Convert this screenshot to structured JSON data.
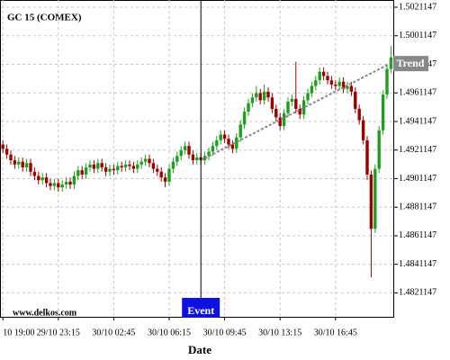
{
  "chart_data": {
    "type": "candlestick",
    "title": "GC 15 (COMEX)",
    "watermark": "www.delkos.com",
    "x_label": "Date",
    "categories": [
      "10 19:00",
      null,
      null,
      null,
      null,
      null,
      null,
      null,
      null,
      null,
      null,
      null,
      null,
      null,
      "29/10 23:15",
      null,
      null,
      null,
      null,
      null,
      null,
      null,
      null,
      null,
      null,
      null,
      null,
      null,
      "30/10 02:45",
      null,
      null,
      null,
      null,
      null,
      null,
      null,
      null,
      null,
      null,
      null,
      null,
      null,
      "30/10 06:15",
      null,
      null,
      null,
      null,
      null,
      null,
      null,
      null,
      null,
      null,
      null,
      null,
      null,
      "30/10 09:45",
      null,
      null,
      null,
      null,
      null,
      null,
      null,
      null,
      null,
      null,
      null,
      null,
      null,
      "30/10 13:15",
      null,
      null,
      null,
      null,
      null,
      null,
      null,
      null,
      null,
      null,
      null,
      null,
      null,
      "30/10 16:45",
      null,
      null,
      null,
      null,
      null,
      null,
      null,
      null,
      null,
      null,
      null,
      null,
      null,
      null
    ],
    "open": [
      1.4925,
      1.4922,
      1.4918,
      1.4914,
      1.4911,
      1.4913,
      1.4909,
      1.4912,
      1.4906,
      1.4903,
      1.49,
      1.4902,
      1.4898,
      1.4896,
      1.4898,
      1.4895,
      1.4897,
      1.4899,
      1.4897,
      1.4903,
      1.4907,
      1.4904,
      1.4909,
      1.4911,
      1.4908,
      1.4912,
      1.4909,
      1.4906,
      1.4908,
      1.4907,
      1.491,
      1.4909,
      1.4911,
      1.491,
      1.4908,
      1.4911,
      1.4913,
      1.4915,
      1.4912,
      1.4908,
      1.4906,
      1.4902,
      1.4899,
      1.4908,
      1.4913,
      1.4917,
      1.4921,
      1.4924,
      1.4918,
      1.4914,
      1.4916,
      1.4914,
      1.4917,
      1.492,
      1.4924,
      1.4928,
      1.4932,
      1.4929,
      1.4925,
      1.4922,
      1.493,
      1.4939,
      1.4948,
      1.4954,
      1.4958,
      1.4961,
      1.4956,
      1.4962,
      1.4958,
      1.495,
      1.4944,
      1.4938,
      1.4947,
      1.4955,
      1.4957,
      1.495,
      1.4946,
      1.4956,
      1.4961,
      1.4966,
      1.497,
      1.4976,
      1.4973,
      1.497,
      1.4967,
      1.4966,
      1.4969,
      1.4964,
      1.4966,
      1.4962,
      1.495,
      1.4942,
      1.4928,
      1.4904,
      1.4866,
      1.4908,
      1.4935,
      1.496,
      1.4978
    ],
    "high": [
      1.4928,
      1.4925,
      1.4921,
      1.4917,
      1.4916,
      1.4916,
      1.4915,
      1.4915,
      1.4909,
      1.4906,
      1.4905,
      1.4905,
      1.4901,
      1.4901,
      1.4901,
      1.49,
      1.4902,
      1.4902,
      1.4906,
      1.491,
      1.491,
      1.4912,
      1.4914,
      1.4914,
      1.4915,
      1.4915,
      1.4912,
      1.4911,
      1.4911,
      1.4913,
      1.4913,
      1.4914,
      1.4914,
      1.4913,
      1.4914,
      1.4916,
      1.4918,
      1.4918,
      1.4915,
      1.4911,
      1.4909,
      1.4905,
      1.4911,
      1.4916,
      1.492,
      1.4924,
      1.4927,
      1.4927,
      1.4921,
      1.4919,
      1.4919,
      1.492,
      1.4923,
      1.4927,
      1.4931,
      1.4935,
      1.4935,
      1.4932,
      1.4928,
      1.4933,
      1.4942,
      1.4951,
      1.4957,
      1.4961,
      1.4966,
      1.4964,
      1.4967,
      1.4965,
      1.4961,
      1.4953,
      1.4947,
      1.495,
      1.4958,
      1.496,
      1.4983,
      1.4953,
      1.4959,
      1.4964,
      1.4969,
      1.4973,
      1.4979,
      1.4979,
      1.4976,
      1.4973,
      1.497,
      1.4972,
      1.4972,
      1.4969,
      1.4969,
      1.4965,
      1.4953,
      1.4945,
      1.4931,
      1.4907,
      1.4911,
      1.4938,
      1.4963,
      1.4981,
      1.4994
    ],
    "low": [
      1.4919,
      1.4915,
      1.4911,
      1.4908,
      1.4908,
      1.4906,
      1.4906,
      1.4903,
      1.49,
      1.4897,
      1.4897,
      1.4895,
      1.4893,
      1.4893,
      1.4892,
      1.4892,
      1.4894,
      1.4894,
      1.4894,
      1.49,
      1.4901,
      1.4901,
      1.4906,
      1.4905,
      1.4905,
      1.4906,
      1.4903,
      1.4903,
      1.4904,
      1.4904,
      1.4906,
      1.4906,
      1.4907,
      1.4905,
      1.4905,
      1.4908,
      1.491,
      1.4909,
      1.4905,
      1.4903,
      1.4899,
      1.4895,
      1.4896,
      1.4905,
      1.491,
      1.4914,
      1.4918,
      1.4915,
      1.4911,
      1.4911,
      1.4911,
      1.4911,
      1.4914,
      1.4917,
      1.4921,
      1.4925,
      1.4926,
      1.4922,
      1.4919,
      1.4919,
      1.4927,
      1.4936,
      1.4945,
      1.4951,
      1.4955,
      1.4953,
      1.4953,
      1.4955,
      1.4947,
      1.4941,
      1.4935,
      1.4935,
      1.4944,
      1.4952,
      1.4947,
      1.4943,
      1.4943,
      1.4953,
      1.4958,
      1.4963,
      1.4967,
      1.497,
      1.4967,
      1.4964,
      1.4963,
      1.4963,
      1.4961,
      1.4961,
      1.4959,
      1.4947,
      1.4939,
      1.4925,
      1.49,
      1.4832,
      1.4863,
      1.4905,
      1.4932,
      1.4957,
      1.4975
    ],
    "close": [
      1.4922,
      1.4918,
      1.4914,
      1.4911,
      1.4913,
      1.4909,
      1.4912,
      1.4906,
      1.4903,
      1.49,
      1.4902,
      1.4898,
      1.4896,
      1.4898,
      1.4895,
      1.4897,
      1.4899,
      1.4897,
      1.4903,
      1.4907,
      1.4904,
      1.4909,
      1.4911,
      1.4908,
      1.4912,
      1.4909,
      1.4906,
      1.4908,
      1.4907,
      1.491,
      1.4909,
      1.4911,
      1.491,
      1.4908,
      1.4911,
      1.4913,
      1.4915,
      1.4912,
      1.4908,
      1.4906,
      1.4902,
      1.4899,
      1.4908,
      1.4913,
      1.4917,
      1.4921,
      1.4924,
      1.4918,
      1.4914,
      1.4916,
      1.4914,
      1.4917,
      1.492,
      1.4924,
      1.4928,
      1.4932,
      1.4929,
      1.4925,
      1.4922,
      1.493,
      1.4939,
      1.4948,
      1.4954,
      1.4958,
      1.4961,
      1.4956,
      1.4962,
      1.4958,
      1.495,
      1.4944,
      1.4938,
      1.4947,
      1.4955,
      1.4957,
      1.495,
      1.4946,
      1.4956,
      1.4961,
      1.4966,
      1.497,
      1.4976,
      1.4973,
      1.497,
      1.4967,
      1.4966,
      1.4969,
      1.4964,
      1.4966,
      1.4962,
      1.495,
      1.4942,
      1.4928,
      1.4904,
      1.4866,
      1.4908,
      1.4935,
      1.496,
      1.4978,
      1.4986
    ],
    "up_color": "#1e9e1e",
    "down_color": "#9b0000",
    "ylim": [
      1.48044,
      1.50262
    ],
    "yticks": [
      1.4821147,
      1.4841147,
      1.4861147,
      1.4881147,
      1.4901147,
      1.4921147,
      1.4941147,
      1.4961147,
      1.4981147,
      1.5001147,
      1.5021147
    ],
    "grid": true,
    "event": {
      "label": "Event",
      "index": 50,
      "color": "#1010e0"
    },
    "trend": {
      "label": "Trend",
      "x": [
        50,
        98
      ],
      "values": [
        1.4914,
        1.4982
      ],
      "color": "#888888"
    }
  }
}
